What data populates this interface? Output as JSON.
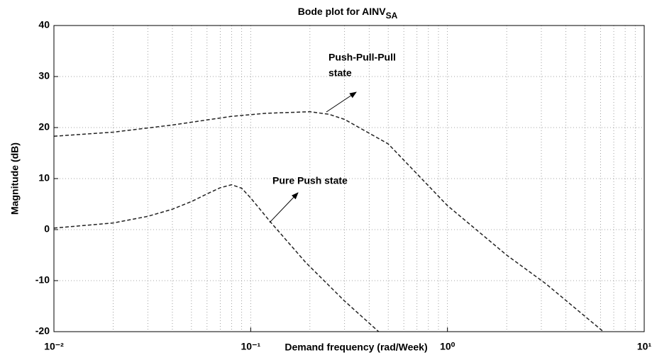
{
  "chart_data": {
    "type": "line",
    "title": "Bode plot for AINV",
    "title_subscript": "SA",
    "x_label": "Demand frequency (rad/Week)",
    "y_label": "Magnitude (dB)",
    "xscale": "log",
    "grid": true,
    "xlim": [
      0.01,
      10
    ],
    "xticks": [
      {
        "value": 0.01,
        "label": "10⁻²"
      },
      {
        "value": 0.1,
        "label": "10⁻¹"
      },
      {
        "value": 1,
        "label": "10⁰"
      },
      {
        "value": 10,
        "label": "10¹"
      }
    ],
    "ylim": [
      -20,
      40
    ],
    "yticks": [
      -20,
      -10,
      0,
      10,
      20,
      30,
      40
    ],
    "series": [
      {
        "name": "Push-Pull-Pull state",
        "color": "#222222",
        "x": [
          0.01,
          0.02,
          0.04,
          0.08,
          0.12,
          0.2,
          0.25,
          0.3,
          0.5,
          1,
          2,
          3.16,
          6.2
        ],
        "values": [
          18.3,
          19.1,
          20.5,
          22.2,
          22.8,
          23.1,
          22.6,
          21.6,
          16.8,
          4.7,
          -5,
          -10.6,
          -20
        ]
      },
      {
        "name": "Pure Push state",
        "color": "#222222",
        "x": [
          0.01,
          0.02,
          0.03,
          0.04,
          0.05,
          0.06,
          0.07,
          0.08,
          0.09,
          0.1,
          0.126,
          0.19,
          0.3,
          0.447
        ],
        "values": [
          0.3,
          1.3,
          2.6,
          4,
          5.5,
          7,
          8.2,
          8.8,
          8.1,
          6.2,
          1.5,
          -6.4,
          -14,
          -20
        ]
      }
    ],
    "annotations": [
      "Push-Pull-Pull",
      "state",
      "Pure Push state"
    ]
  }
}
